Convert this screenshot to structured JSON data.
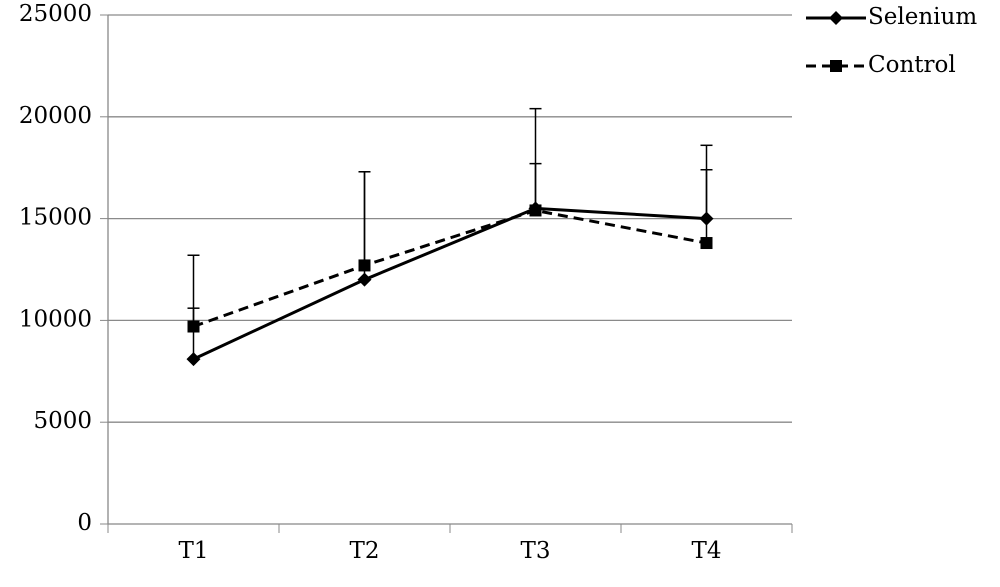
{
  "chart_data": {
    "type": "line",
    "categories": [
      "T1",
      "T2",
      "T3",
      "T4"
    ],
    "series": [
      {
        "name": "Selenium",
        "color": "#000000",
        "dash": false,
        "marker": "diamond",
        "values": [
          8100,
          12000,
          15500,
          15000
        ],
        "errors": [
          2500,
          5300,
          4900,
          2400
        ]
      },
      {
        "name": "Control",
        "color": "#000000",
        "dash": true,
        "marker": "square",
        "values": [
          9700,
          12700,
          15400,
          13800
        ],
        "errors": [
          3500,
          4600,
          2300,
          4800
        ]
      }
    ],
    "ylim": [
      0,
      25000
    ],
    "yticks": [
      0,
      5000,
      10000,
      15000,
      20000,
      25000
    ],
    "grid": true,
    "legend": "top-right"
  }
}
